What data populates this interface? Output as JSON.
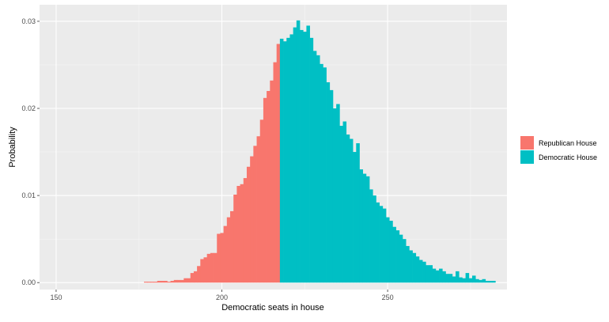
{
  "chart_data": {
    "type": "bar",
    "xlabel": "Democratic seats in house",
    "ylabel": "Probability",
    "xlim": [
      145,
      286
    ],
    "ylim": [
      -0.0008,
      0.0319
    ],
    "x_ticks": [
      150,
      200,
      250
    ],
    "y_ticks": [
      0.0,
      0.01,
      0.02,
      0.03
    ],
    "x_tick_labels": [
      "150",
      "200",
      "250"
    ],
    "y_tick_labels": [
      "0.00",
      "0.01",
      "0.02",
      "0.03"
    ],
    "bin_width": 1,
    "threshold": 218,
    "grid": true,
    "legend_position": "right",
    "series": [
      {
        "name": "Republican House",
        "color": "#F8766D",
        "x": [
          177,
          178,
          179,
          180,
          181,
          182,
          183,
          184,
          185,
          186,
          187,
          188,
          189,
          190,
          191,
          192,
          193,
          194,
          195,
          196,
          197,
          198,
          199,
          200,
          201,
          202,
          203,
          204,
          205,
          206,
          207,
          208,
          209,
          210,
          211,
          212,
          213,
          214,
          215,
          216,
          217
        ],
        "values": [
          0.0001,
          0.0001,
          0.0001,
          0.0001,
          0.0002,
          0.0002,
          0.0002,
          0.0001,
          0.0002,
          0.0003,
          0.0003,
          0.0003,
          0.0005,
          0.0005,
          0.0011,
          0.0013,
          0.0019,
          0.0027,
          0.0029,
          0.0033,
          0.0034,
          0.0034,
          0.0056,
          0.0057,
          0.0065,
          0.0075,
          0.0082,
          0.0101,
          0.0111,
          0.0113,
          0.012,
          0.0133,
          0.0145,
          0.0157,
          0.0168,
          0.0187,
          0.0212,
          0.022,
          0.0232,
          0.0253,
          0.0274
        ]
      },
      {
        "name": "Democratic House",
        "color": "#00BFC4",
        "x": [
          218,
          219,
          220,
          221,
          222,
          223,
          224,
          225,
          226,
          227,
          228,
          229,
          230,
          231,
          232,
          233,
          234,
          235,
          236,
          237,
          238,
          239,
          240,
          241,
          242,
          243,
          244,
          245,
          246,
          247,
          248,
          249,
          250,
          251,
          252,
          253,
          254,
          255,
          256,
          257,
          258,
          259,
          260,
          261,
          262,
          263,
          264,
          265,
          266,
          267,
          268,
          269,
          270,
          271,
          272,
          273,
          274,
          275,
          276,
          277,
          278,
          279,
          280,
          281,
          282
        ],
        "values": [
          0.028,
          0.0277,
          0.0281,
          0.0285,
          0.0293,
          0.0301,
          0.029,
          0.0288,
          0.0295,
          0.0281,
          0.0266,
          0.0261,
          0.0251,
          0.0247,
          0.023,
          0.0221,
          0.02,
          0.0205,
          0.018,
          0.0185,
          0.017,
          0.0165,
          0.015,
          0.016,
          0.013,
          0.0125,
          0.0122,
          0.0107,
          0.01,
          0.0092,
          0.0088,
          0.0085,
          0.0075,
          0.0071,
          0.0064,
          0.006,
          0.0055,
          0.005,
          0.0042,
          0.0037,
          0.0034,
          0.003,
          0.0026,
          0.0024,
          0.002,
          0.002,
          0.0016,
          0.0014,
          0.0016,
          0.0013,
          0.001,
          0.001,
          0.0007,
          0.0013,
          0.0006,
          0.0005,
          0.0011,
          0.0005,
          0.0008,
          0.0004,
          0.0003,
          0.0004,
          0.0002,
          0.0002,
          0.0002
        ]
      }
    ]
  }
}
